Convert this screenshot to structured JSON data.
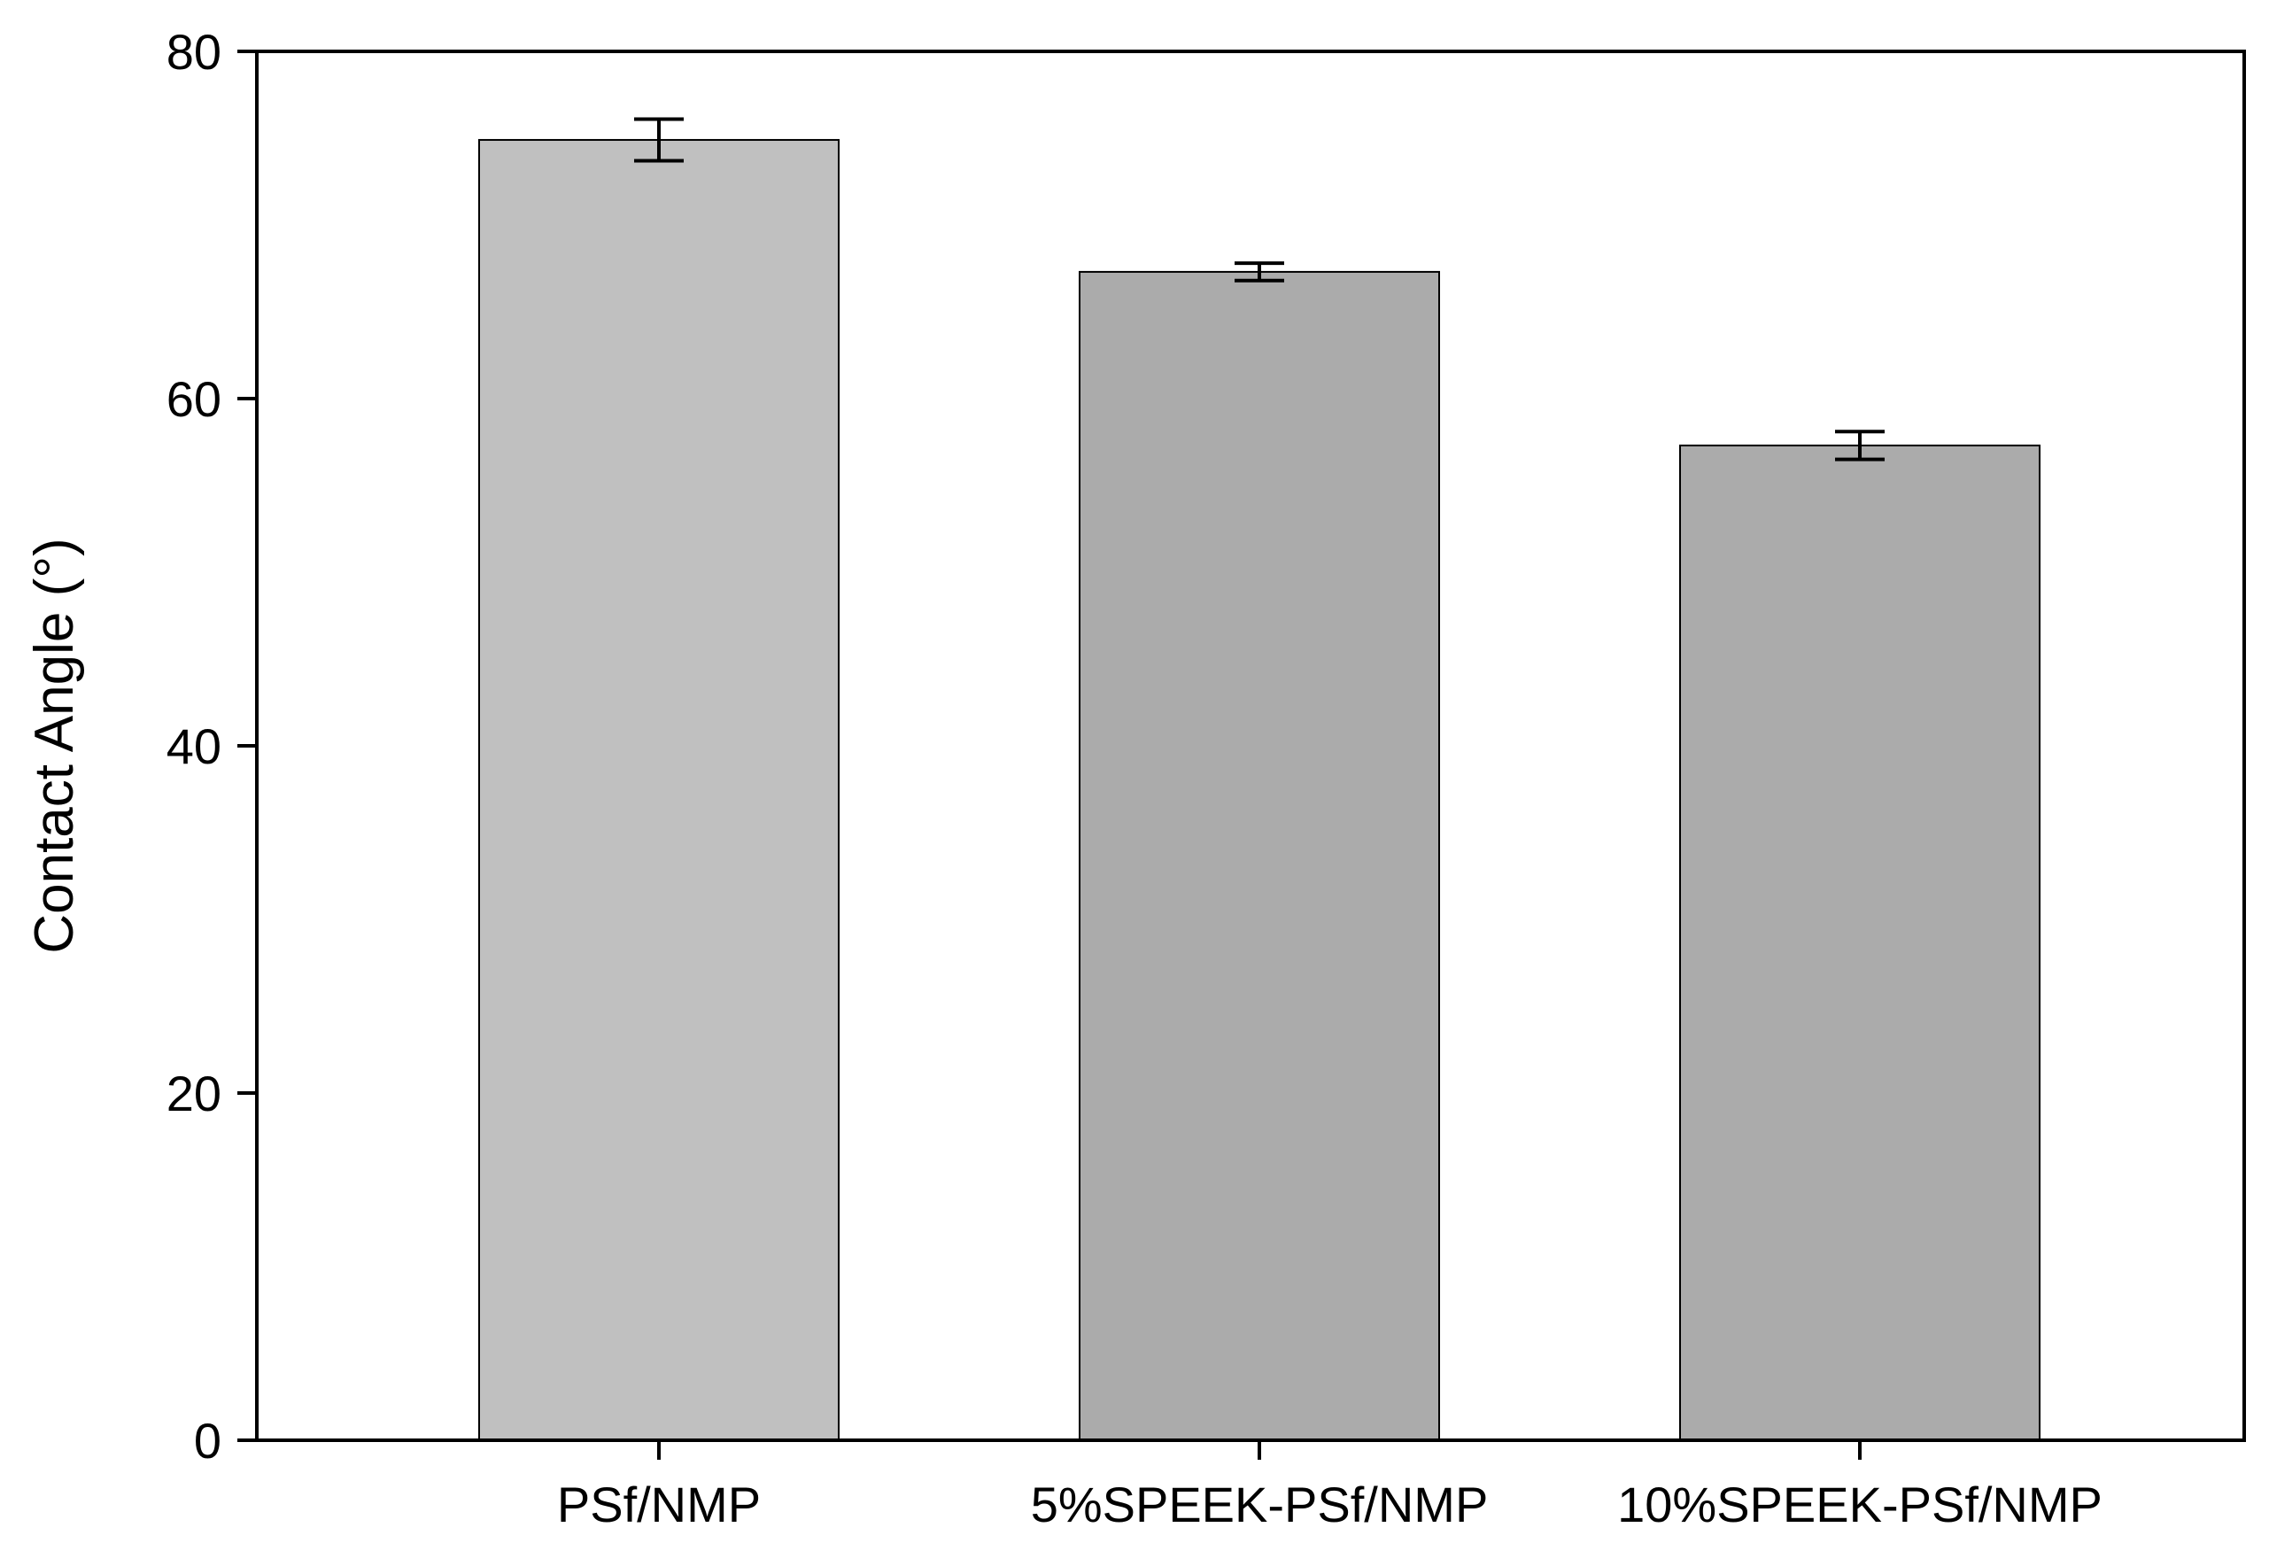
{
  "chart_data": {
    "type": "bar",
    "categories": [
      "PSf/NMP",
      "5%SPEEK-PSf/NMP",
      "10%SPEEK-PSf/NMP"
    ],
    "values": [
      74.9,
      67.3,
      57.3
    ],
    "errors": [
      1.2,
      0.5,
      0.8
    ],
    "colors": [
      "#c0c0c0",
      "#ababab",
      "#ababab"
    ],
    "title": "",
    "xlabel": "",
    "ylabel": "Contact Angle (°)",
    "ylim": [
      0,
      80
    ],
    "yticks": [
      "0",
      "20",
      "40",
      "60",
      "80"
    ],
    "grid": false,
    "legend": "none"
  }
}
